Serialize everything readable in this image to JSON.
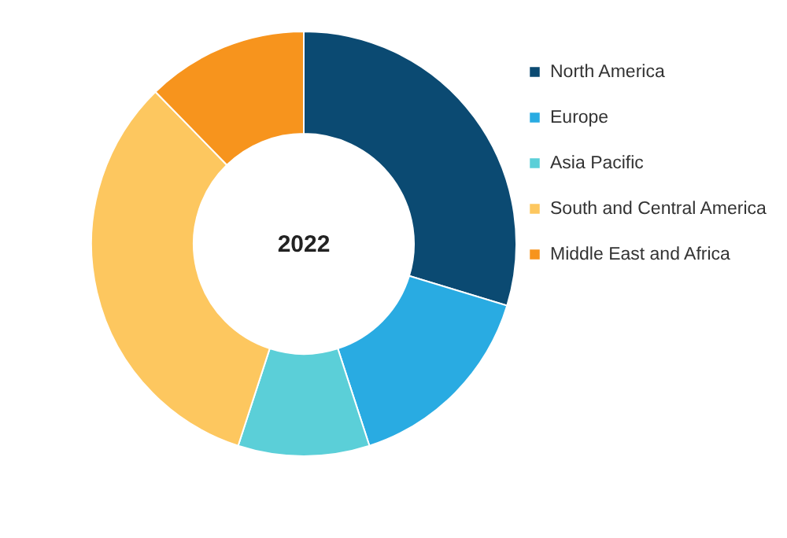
{
  "chart_data": {
    "type": "donut",
    "title": "2022",
    "categories": [
      "North America",
      "Europe",
      "Asia Pacific",
      "South and Central America",
      "Middle East and Africa"
    ],
    "values": [
      29.7,
      15.3,
      10.0,
      32.7,
      12.3
    ],
    "colors": [
      "#0b4a72",
      "#29abe2",
      "#5bcfd8",
      "#fdc75f",
      "#f7941d"
    ],
    "legend": "right"
  }
}
